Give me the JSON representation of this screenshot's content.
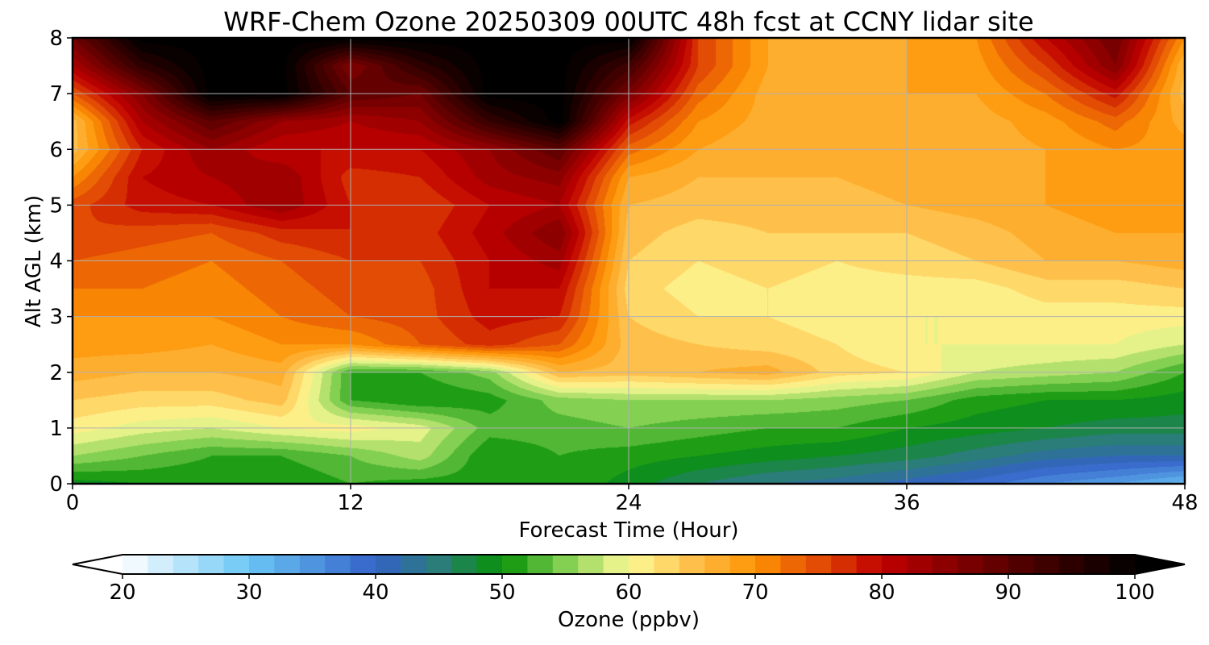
{
  "chart_data": {
    "type": "heatmap",
    "title": "WRF-Chem Ozone  20250309 00UTC 48h fcst at CCNY lidar site",
    "xlabel": "Forecast Time (Hour)",
    "ylabel": "Alt AGL (km)",
    "xlim": [
      0,
      48
    ],
    "ylim": [
      0,
      8
    ],
    "x_ticks": [
      "0",
      "12",
      "24",
      "36",
      "48"
    ],
    "y_ticks": [
      "0",
      "1",
      "2",
      "3",
      "4",
      "5",
      "6",
      "7",
      "8"
    ],
    "grid": true,
    "x_hours": [
      0,
      3,
      6,
      9,
      12,
      15,
      18,
      21,
      24,
      27,
      30,
      33,
      36,
      39,
      42,
      45,
      48
    ],
    "y_km": [
      0,
      0.5,
      1,
      1.5,
      2,
      2.5,
      3,
      3.5,
      4,
      4.5,
      5,
      5.5,
      6,
      6.5,
      7,
      7.5,
      8
    ],
    "z_ppbv": [
      [
        49,
        50,
        50,
        50,
        52,
        51,
        51,
        52,
        49,
        46,
        44,
        43,
        41,
        39,
        36,
        34,
        31
      ],
      [
        56,
        54,
        52,
        52,
        54,
        57,
        50,
        52,
        51,
        50,
        49,
        48,
        47,
        45,
        43,
        42,
        42
      ],
      [
        61,
        59,
        58,
        60,
        61,
        59,
        53,
        53,
        54,
        53,
        52,
        52,
        50,
        49,
        48,
        47,
        47
      ],
      [
        64,
        63,
        63,
        65,
        52,
        50,
        51,
        55,
        56,
        56,
        56,
        55,
        54,
        51,
        50,
        50,
        49
      ],
      [
        67,
        66,
        66,
        67,
        52,
        52,
        55,
        66,
        65,
        66,
        67,
        63,
        62,
        58,
        57,
        56,
        52
      ],
      [
        69,
        69,
        68,
        70,
        70,
        74,
        77,
        74,
        65,
        64,
        63,
        62,
        60,
        60,
        60,
        60,
        58
      ],
      [
        70,
        70,
        70,
        72,
        74,
        75,
        79,
        78,
        64,
        62,
        62,
        61,
        60,
        60,
        61,
        61,
        61
      ],
      [
        72,
        72,
        71,
        73,
        75,
        75,
        80,
        80,
        63,
        61,
        62,
        61,
        61,
        61,
        63,
        63,
        64
      ],
      [
        74,
        73,
        72,
        74,
        76,
        76,
        80,
        83,
        64,
        62,
        63,
        62,
        63,
        64,
        66,
        66,
        67
      ],
      [
        76,
        75,
        74,
        77,
        78,
        77,
        81,
        86,
        65,
        63,
        64,
        64,
        64,
        65,
        67,
        68,
        68
      ],
      [
        75,
        79,
        80,
        84,
        78,
        76,
        80,
        82,
        66,
        65,
        65,
        65,
        66,
        67,
        68,
        69,
        69
      ],
      [
        70,
        80,
        82,
        84,
        77,
        78,
        83,
        85,
        68,
        66,
        66,
        66,
        67,
        67,
        68,
        69,
        69
      ],
      [
        65,
        78,
        84,
        80,
        80,
        80,
        84,
        90,
        73,
        68,
        66,
        66,
        67,
        67,
        68,
        70,
        69
      ],
      [
        65,
        82,
        90,
        84,
        82,
        84,
        94,
        101,
        79,
        70,
        67,
        66,
        67,
        67,
        69,
        73,
        67
      ],
      [
        74,
        86,
        101,
        101,
        90,
        88,
        101,
        101,
        87,
        73,
        67,
        66,
        68,
        68,
        72,
        79,
        65
      ],
      [
        82,
        95,
        101,
        101,
        86,
        95,
        101,
        101,
        93,
        76,
        68,
        66,
        68,
        69,
        76,
        86,
        66
      ],
      [
        88,
        101,
        101,
        101,
        101,
        101,
        101,
        101,
        101,
        76,
        68,
        67,
        68,
        70,
        80,
        88,
        70
      ]
    ]
  },
  "colorbar": {
    "label": "Ozone  (ppbv)",
    "min": 20,
    "max": 100,
    "ticks": [
      "20",
      "30",
      "40",
      "50",
      "60",
      "70",
      "80",
      "90",
      "100"
    ],
    "extend": "both",
    "colors": {
      "c20": "#ffffff",
      "c30": "#6ac6f5",
      "c40": "#3462c8",
      "c45": "#2a7d78",
      "c50": "#069206",
      "c55": "#84d052",
      "c60": "#fdfb98",
      "c65": "#fec04a",
      "c70": "#fe9304",
      "c75": "#e24c04",
      "c80": "#c00000",
      "c90": "#5a0000",
      "c100": "#000000"
    }
  }
}
